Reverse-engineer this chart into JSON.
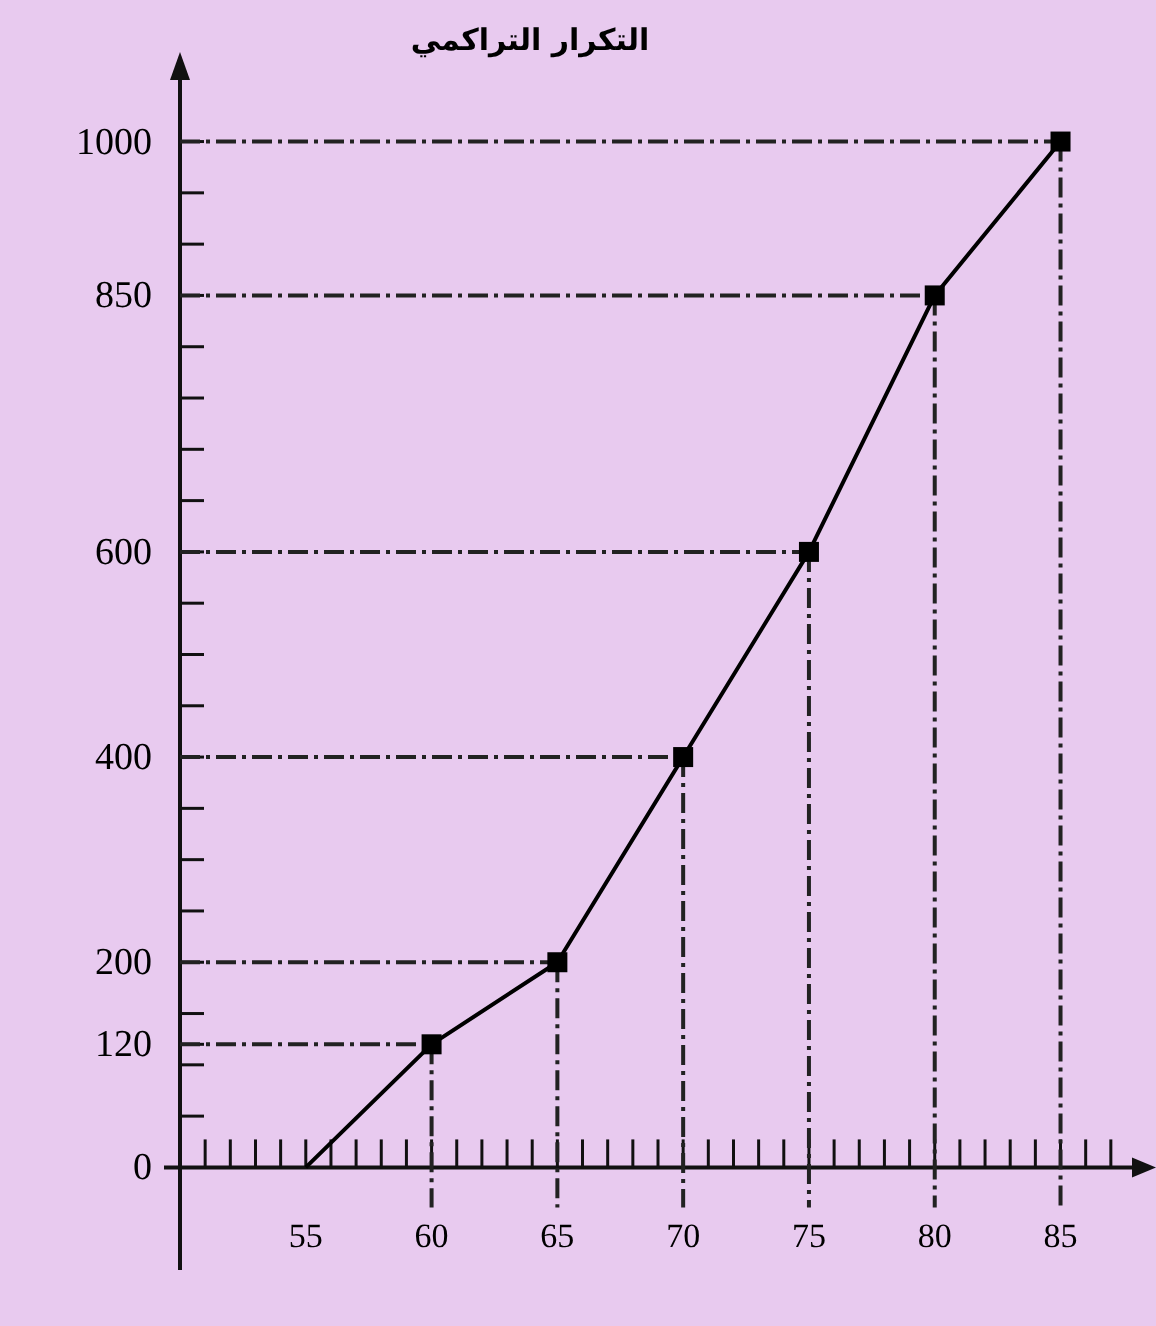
{
  "chart_data": {
    "type": "line",
    "ylabel": "التكرار التراكمي",
    "x": [
      55,
      60,
      65,
      70,
      75,
      80,
      85
    ],
    "series": [
      {
        "color": "#000000",
        "values": [
          0,
          120,
          200,
          400,
          600,
          850,
          1000
        ]
      }
    ],
    "marker": "square",
    "line_style": "solid",
    "grid": false,
    "xlim": [
      50,
      88
    ],
    "ylim": [
      -100,
      1060
    ],
    "xticks": [
      {
        "value": 51,
        "label": null
      },
      {
        "value": 52,
        "label": null
      },
      {
        "value": 53,
        "label": null
      },
      {
        "value": 54,
        "label": null
      },
      55,
      {
        "value": 56,
        "label": null
      },
      {
        "value": 57,
        "label": null
      },
      {
        "value": 58,
        "label": null
      },
      {
        "value": 59,
        "label": null
      },
      60,
      {
        "value": 61,
        "label": null
      },
      {
        "value": 62,
        "label": null
      },
      {
        "value": 63,
        "label": null
      },
      {
        "value": 64,
        "label": null
      },
      65,
      {
        "value": 66,
        "label": null
      },
      {
        "value": 67,
        "label": null
      },
      {
        "value": 68,
        "label": null
      },
      {
        "value": 69,
        "label": null
      },
      70,
      {
        "value": 71,
        "label": null
      },
      {
        "value": 72,
        "label": null
      },
      {
        "value": 73,
        "label": null
      },
      {
        "value": 74,
        "label": null
      },
      75,
      {
        "value": 76,
        "label": null
      },
      {
        "value": 77,
        "label": null
      },
      {
        "value": 78,
        "label": null
      },
      {
        "value": 79,
        "label": null
      },
      80,
      {
        "value": 81,
        "label": null
      },
      {
        "value": 82,
        "label": null
      },
      {
        "value": 83,
        "label": null
      },
      {
        "value": 84,
        "label": null
      },
      85,
      {
        "value": 86,
        "label": null
      },
      {
        "value": 87,
        "label": null
      }
    ],
    "yticks": [
      0,
      {
        "value": 50,
        "label": null
      },
      {
        "value": 100,
        "label": null
      },
      120,
      {
        "value": 150,
        "label": null
      },
      200,
      {
        "value": 250,
        "label": null
      },
      {
        "value": 300,
        "label": null
      },
      {
        "value": 350,
        "label": null
      },
      400,
      {
        "value": 450,
        "label": null
      },
      {
        "value": 500,
        "label": null
      },
      {
        "value": 550,
        "label": null
      },
      600,
      {
        "value": 650,
        "label": null
      },
      {
        "value": 700,
        "label": null
      },
      {
        "value": 750,
        "label": null
      },
      {
        "value": 800,
        "label": null
      },
      850,
      {
        "value": 900,
        "label": null
      },
      {
        "value": 950,
        "label": null
      },
      1000
    ],
    "ref_lines": [
      {
        "axis": "y",
        "value": 120,
        "line_style": "dashed"
      },
      {
        "axis": "y",
        "value": 200,
        "line_style": "dashed"
      },
      {
        "axis": "y",
        "value": 400,
        "line_style": "dashed"
      },
      {
        "axis": "y",
        "value": 600,
        "line_style": "dashed"
      },
      {
        "axis": "y",
        "value": 850,
        "line_style": "dashed"
      },
      {
        "axis": "y",
        "value": 1000,
        "line_style": "dashed"
      },
      {
        "axis": "x",
        "value": 60,
        "line_style": "dashed"
      },
      {
        "axis": "x",
        "value": 65,
        "line_style": "dashed"
      },
      {
        "axis": "x",
        "value": 70,
        "line_style": "dashed"
      },
      {
        "axis": "x",
        "value": 75,
        "line_style": "dashed"
      },
      {
        "axis": "x",
        "value": 80,
        "line_style": "dashed"
      },
      {
        "axis": "x",
        "value": 85,
        "line_style": "dashed"
      }
    ]
  }
}
